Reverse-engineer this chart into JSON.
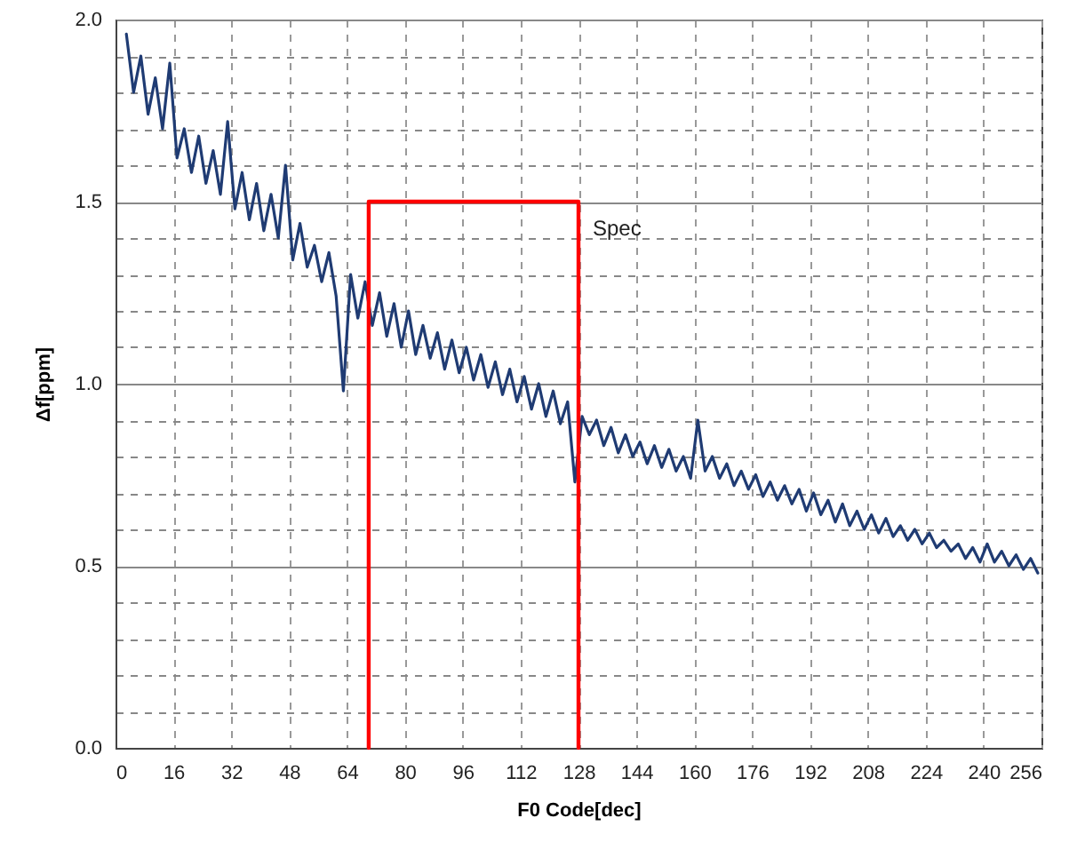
{
  "chart_data": {
    "type": "line",
    "xlabel": "F0 Code[dec]",
    "ylabel": "Δf[ppm]",
    "xlim": [
      0,
      256
    ],
    "xticks": [
      0,
      16,
      32,
      48,
      64,
      80,
      96,
      112,
      128,
      144,
      160,
      176,
      192,
      208,
      224,
      240,
      256
    ],
    "ylim": [
      0,
      2
    ],
    "yticks": [
      {
        "value": 0,
        "label": "0.0"
      },
      {
        "value": 0.1,
        "label": null
      },
      {
        "value": 0.2,
        "label": null
      },
      {
        "value": 0.3,
        "label": null
      },
      {
        "value": 0.4,
        "label": null
      },
      0.5,
      {
        "value": 0.6,
        "label": null
      },
      {
        "value": 0.7,
        "label": null
      },
      {
        "value": 0.8,
        "label": null
      },
      {
        "value": 0.9,
        "label": null
      },
      {
        "value": 1,
        "label": "1.0"
      },
      {
        "value": 1.1,
        "label": null
      },
      {
        "value": 1.2,
        "label": null
      },
      {
        "value": 1.3,
        "label": null
      },
      {
        "value": 1.4,
        "label": null
      },
      1.5,
      {
        "value": 1.6,
        "label": null
      },
      {
        "value": 1.7,
        "label": null
      },
      {
        "value": 1.8,
        "label": null
      },
      {
        "value": 1.9,
        "label": null
      },
      {
        "value": 2,
        "label": "2.0"
      }
    ],
    "grid": true,
    "marker": "none",
    "line_style": "solid",
    "series": [
      {
        "color": "#1f3b73",
        "x": [
          3,
          5,
          7,
          9,
          11,
          13,
          15,
          17,
          19,
          21,
          23,
          25,
          27,
          29,
          31,
          33,
          35,
          37,
          39,
          41,
          43,
          45,
          47,
          49,
          51,
          53,
          55,
          57,
          59,
          61,
          63,
          65,
          67,
          69,
          71,
          73,
          75,
          77,
          79,
          81,
          83,
          85,
          87,
          89,
          91,
          93,
          95,
          97,
          99,
          101,
          103,
          105,
          107,
          109,
          111,
          113,
          115,
          117,
          119,
          121,
          123,
          125,
          127,
          129,
          131,
          133,
          135,
          137,
          139,
          141,
          143,
          145,
          147,
          149,
          151,
          153,
          155,
          157,
          159,
          161,
          163,
          165,
          167,
          169,
          171,
          173,
          175,
          177,
          179,
          181,
          183,
          185,
          187,
          189,
          191,
          193,
          195,
          197,
          199,
          201,
          203,
          205,
          207,
          209,
          211,
          213,
          215,
          217,
          219,
          221,
          223,
          225,
          227,
          229,
          231,
          233,
          235,
          237,
          239,
          241,
          243,
          245,
          247,
          249,
          251,
          253,
          255
        ],
        "values": [
          1.96,
          1.8,
          1.9,
          1.74,
          1.84,
          1.7,
          1.88,
          1.62,
          1.7,
          1.58,
          1.68,
          1.55,
          1.64,
          1.52,
          1.72,
          1.48,
          1.58,
          1.45,
          1.55,
          1.42,
          1.52,
          1.4,
          1.6,
          1.34,
          1.44,
          1.32,
          1.38,
          1.28,
          1.36,
          1.24,
          0.98,
          1.3,
          1.18,
          1.28,
          1.16,
          1.25,
          1.13,
          1.22,
          1.1,
          1.2,
          1.08,
          1.16,
          1.07,
          1.14,
          1.04,
          1.12,
          1.03,
          1.1,
          1.01,
          1.08,
          0.99,
          1.06,
          0.97,
          1.04,
          0.95,
          1.02,
          0.93,
          1.0,
          0.91,
          0.98,
          0.89,
          0.95,
          0.73,
          0.91,
          0.86,
          0.9,
          0.83,
          0.88,
          0.81,
          0.86,
          0.8,
          0.84,
          0.78,
          0.83,
          0.77,
          0.82,
          0.76,
          0.8,
          0.74,
          0.9,
          0.76,
          0.8,
          0.74,
          0.78,
          0.72,
          0.76,
          0.71,
          0.75,
          0.69,
          0.73,
          0.68,
          0.72,
          0.67,
          0.71,
          0.65,
          0.7,
          0.64,
          0.68,
          0.62,
          0.67,
          0.61,
          0.65,
          0.6,
          0.64,
          0.59,
          0.63,
          0.58,
          0.61,
          0.57,
          0.6,
          0.56,
          0.59,
          0.55,
          0.57,
          0.54,
          0.56,
          0.52,
          0.55,
          0.51,
          0.56,
          0.51,
          0.54,
          0.5,
          0.53,
          0.49,
          0.52,
          0.48
        ]
      },
      {
        "name": "Spec",
        "color": "#ff0000",
        "x": [
          70,
          70,
          128,
          128
        ],
        "values": [
          0,
          1.5,
          1.5,
          0
        ]
      }
    ]
  }
}
